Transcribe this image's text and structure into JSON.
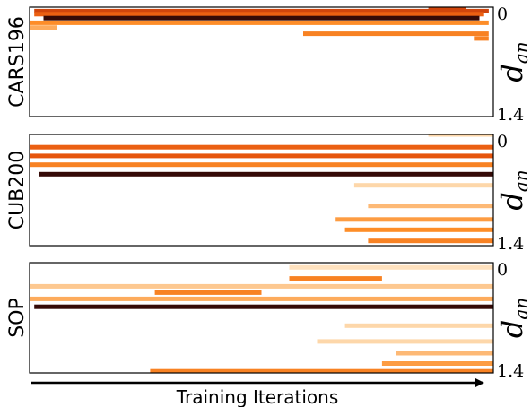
{
  "chart_data": {
    "type": "heatmap",
    "x_axis_label": "Training Iterations",
    "y_variable": "d",
    "y_variable_subscript": "an",
    "y_tick_labels": [
      "0",
      "1.4"
    ],
    "ylim": [
      0,
      1.4
    ],
    "colormap": "white-orange-darkred-black",
    "panels": [
      {
        "name": "CARS196",
        "bands": [
          {
            "d": 0.0,
            "x_start": 0.86,
            "x_end": 0.94,
            "intensity": 0.7
          },
          {
            "d": 0.05,
            "x_start": 0.01,
            "x_end": 0.99,
            "intensity": 0.7
          },
          {
            "d": 0.09,
            "x_start": 0.01,
            "x_end": 0.98,
            "intensity": 0.6
          },
          {
            "d": 0.14,
            "x_start": 0.03,
            "x_end": 0.97,
            "intensity": 0.95
          },
          {
            "d": 0.2,
            "x_start": 0.0,
            "x_end": 0.99,
            "intensity": 0.4
          },
          {
            "d": 0.26,
            "x_start": 0.0,
            "x_end": 0.06,
            "intensity": 0.3
          },
          {
            "d": 0.34,
            "x_start": 0.59,
            "x_end": 0.99,
            "intensity": 0.45
          },
          {
            "d": 0.4,
            "x_start": 0.96,
            "x_end": 0.99,
            "intensity": 0.45
          }
        ]
      },
      {
        "name": "CUB200",
        "bands": [
          {
            "d": 0.0,
            "x_start": 0.86,
            "x_end": 1.0,
            "intensity": 0.15
          },
          {
            "d": 0.16,
            "x_start": 0.0,
            "x_end": 1.0,
            "intensity": 0.6
          },
          {
            "d": 0.27,
            "x_start": 0.0,
            "x_end": 1.0,
            "intensity": 0.65
          },
          {
            "d": 0.38,
            "x_start": 0.0,
            "x_end": 1.0,
            "intensity": 0.45
          },
          {
            "d": 0.5,
            "x_start": 0.02,
            "x_end": 1.0,
            "intensity": 0.95
          },
          {
            "d": 0.64,
            "x_start": 0.7,
            "x_end": 1.0,
            "intensity": 0.15
          },
          {
            "d": 0.9,
            "x_start": 0.73,
            "x_end": 1.0,
            "intensity": 0.25
          },
          {
            "d": 1.07,
            "x_start": 0.66,
            "x_end": 1.0,
            "intensity": 0.35
          },
          {
            "d": 1.2,
            "x_start": 0.68,
            "x_end": 1.0,
            "intensity": 0.4
          },
          {
            "d": 1.34,
            "x_start": 0.73,
            "x_end": 1.0,
            "intensity": 0.45
          }
        ]
      },
      {
        "name": "SOP",
        "bands": [
          {
            "d": 0.06,
            "x_start": 0.56,
            "x_end": 1.0,
            "intensity": 0.1
          },
          {
            "d": 0.2,
            "x_start": 0.56,
            "x_end": 0.76,
            "intensity": 0.45
          },
          {
            "d": 0.3,
            "x_start": 0.0,
            "x_end": 1.0,
            "intensity": 0.2
          },
          {
            "d": 0.38,
            "x_start": 0.27,
            "x_end": 0.5,
            "intensity": 0.45
          },
          {
            "d": 0.46,
            "x_start": 0.0,
            "x_end": 1.0,
            "intensity": 0.3
          },
          {
            "d": 0.56,
            "x_start": 0.01,
            "x_end": 1.0,
            "intensity": 0.95
          },
          {
            "d": 0.8,
            "x_start": 0.68,
            "x_end": 1.0,
            "intensity": 0.15
          },
          {
            "d": 1.0,
            "x_start": 0.62,
            "x_end": 1.0,
            "intensity": 0.15
          },
          {
            "d": 1.15,
            "x_start": 0.79,
            "x_end": 1.0,
            "intensity": 0.25
          },
          {
            "d": 1.28,
            "x_start": 0.76,
            "x_end": 1.0,
            "intensity": 0.35
          },
          {
            "d": 1.38,
            "x_start": 0.26,
            "x_end": 1.0,
            "intensity": 0.45
          }
        ]
      }
    ]
  }
}
